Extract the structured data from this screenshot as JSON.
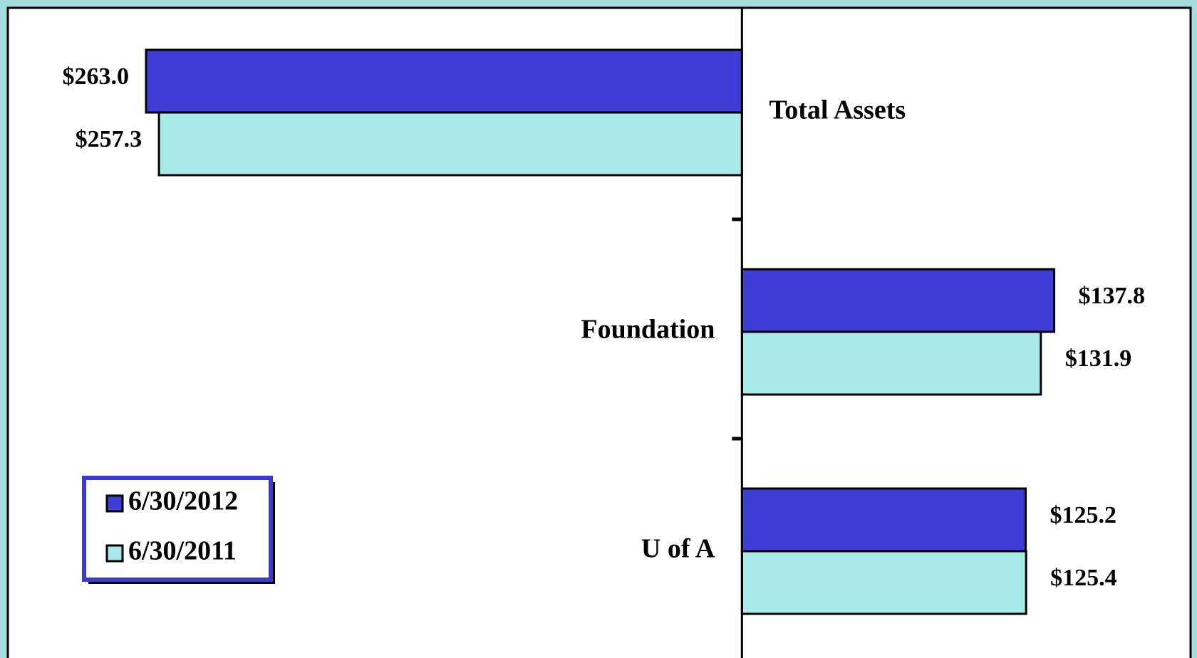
{
  "chart_data": {
    "type": "barh",
    "categories": [
      "Total Assets",
      "Foundation",
      "U of A"
    ],
    "series": [
      {
        "name": "6/30/2012",
        "color": "#3e3ed6",
        "values": [
          -263.0,
          137.8,
          125.2
        ],
        "value_labels": [
          "$263.0",
          "$137.8",
          "$125.2"
        ]
      },
      {
        "name": "6/30/2011",
        "color": "#a8eaea",
        "values": [
          -257.3,
          131.9,
          125.4
        ],
        "value_labels": [
          "$257.3",
          "$131.9",
          "$125.4"
        ]
      }
    ],
    "xlim": [
      -324,
      198
    ],
    "legend": "lower left"
  }
}
